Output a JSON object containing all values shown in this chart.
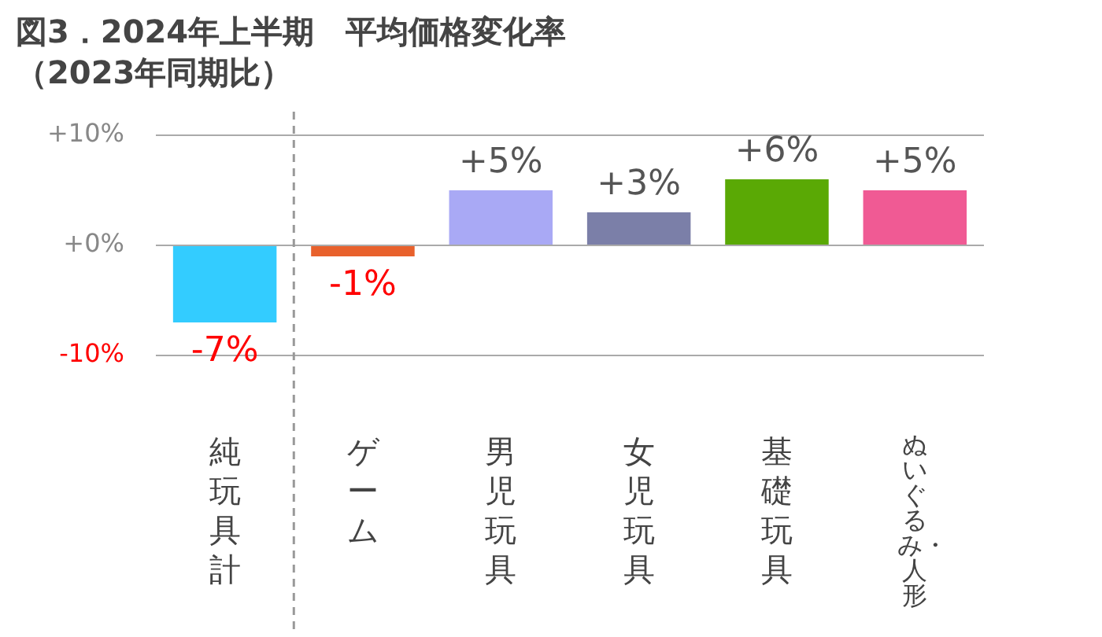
{
  "chart_data": {
    "type": "bar",
    "title": "図3．2024年上半期　平均価格変化率",
    "subtitle": "（2023年同期比）",
    "categories": [
      "純玩具計",
      "ゲーム",
      "男児玩具",
      "女児玩具",
      "基礎玩具",
      "ぬいぐるみ・人形"
    ],
    "values": [
      -7,
      -1,
      5,
      3,
      6,
      5
    ],
    "colors": [
      "#33ccff",
      "#e8612c",
      "#a9a9f5",
      "#7b7fa8",
      "#5aa905",
      "#f05a94"
    ],
    "value_labels": [
      "-7%",
      "-1%",
      "+5%",
      "+3%",
      "+6%",
      "+5%"
    ],
    "ylim": [
      -10,
      10
    ],
    "yticks": [
      {
        "value": -10,
        "label": "-10%"
      },
      {
        "value": 0,
        "label": "+0%"
      },
      {
        "value": 10,
        "label": "+10%"
      }
    ],
    "grid": "y",
    "legend": false
  }
}
